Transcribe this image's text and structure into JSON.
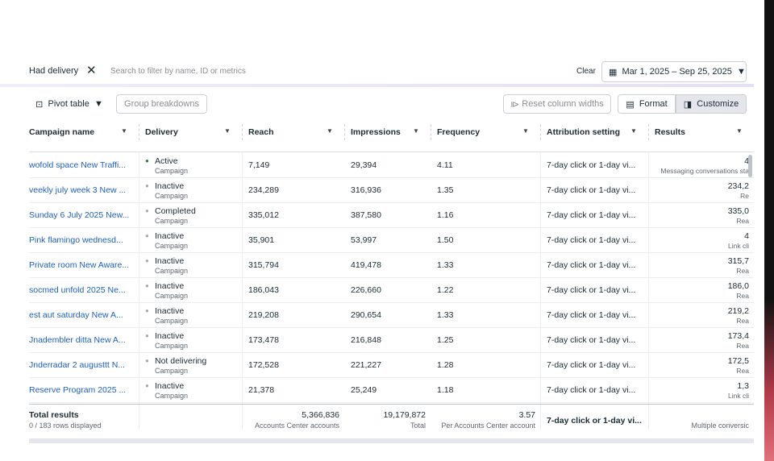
{
  "filter": {
    "chip": "Had delivery",
    "search_placeholder": "Search to filter by name, ID or metrics",
    "clear": "Clear",
    "date_range": "Mar 1, 2025 – Sep 25, 2025"
  },
  "toolbar": {
    "pivot": "Pivot table",
    "group": "Group breakdowns",
    "reset": "Reset column widths",
    "format": "Format",
    "customize": "Customize"
  },
  "table": {
    "columns": [
      "Campaign name",
      "Delivery",
      "Reach",
      "Impressions",
      "Frequency",
      "Attribution setting",
      "Results"
    ],
    "rows": [
      [
        "wofold space New Traffi...",
        "Active",
        "Campaign",
        "7,149",
        "29,394",
        "4.11",
        "7-day click or 1-day vi...",
        "4",
        "Messaging conversations sta"
      ],
      [
        "veekly july week 3 New ...",
        "Inactive",
        "Campaign",
        "234,289",
        "316,936",
        "1.35",
        "7-day click or 1-day vi...",
        "234,2",
        "Re"
      ],
      [
        "Sunday 6 July 2025 New...",
        "Completed",
        "Campaign",
        "335,012",
        "387,580",
        "1.16",
        "7-day click or 1-day vi...",
        "335,0",
        "Rea"
      ],
      [
        "Pink flamingo wednesd...",
        "Inactive",
        "Campaign",
        "35,901",
        "53,997",
        "1.50",
        "7-day click or 1-day vi...",
        "4",
        "Link cli"
      ],
      [
        "Private room New Aware...",
        "Inactive",
        "Campaign",
        "315,794",
        "419,478",
        "1.33",
        "7-day click or 1-day vi...",
        "315,7",
        "Rea"
      ],
      [
        "socmed unfold 2025 Ne...",
        "Inactive",
        "Campaign",
        "186,043",
        "226,660",
        "1.22",
        "7-day click or 1-day vi...",
        "186,0",
        "Rea"
      ],
      [
        "est aut saturday New A...",
        "Inactive",
        "Campaign",
        "219,208",
        "290,654",
        "1.33",
        "7-day click or 1-day vi...",
        "219,2",
        "Rea"
      ],
      [
        "Jnadembler ditta New A...",
        "Inactive",
        "Campaign",
        "173,478",
        "216,848",
        "1.25",
        "7-day click or 1-day vi...",
        "173,4",
        "Rea"
      ],
      [
        "Jnderradar 2 augusttt N...",
        "Not delivering",
        "Campaign",
        "172,528",
        "221,227",
        "1.28",
        "7-day click or 1-day vi...",
        "172,5",
        "Rea"
      ],
      [
        "Reserve Program 2025 ...",
        "Inactive",
        "Campaign",
        "21,378",
        "25,249",
        "1.18",
        "7-day click or 1-day vi...",
        "1,3",
        "Link cli"
      ]
    ],
    "totals": {
      "label": "Total results",
      "rows_displayed": "0 / 183 rows displayed",
      "reach": "5,366,836",
      "reach_sub": "Accounts Center accounts",
      "impressions": "19,179,872",
      "impressions_sub": "Total",
      "frequency": "3.57",
      "frequency_sub": "Per Accounts Center account",
      "attribution": "7-day click or 1-day vi...",
      "results_sub": "Multiple conversic"
    }
  }
}
